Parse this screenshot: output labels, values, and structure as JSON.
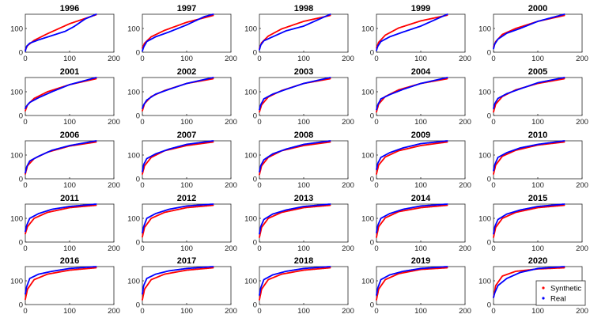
{
  "chart_data": {
    "type": "line",
    "layout": "5x5 small multiples",
    "x_ticks": [
      0,
      100,
      200
    ],
    "y_ticks": [
      0,
      100
    ],
    "xlim": [
      0,
      200
    ],
    "ylim": [
      0,
      160
    ],
    "colors": {
      "synthetic": "#ff0000",
      "real": "#0000ff"
    },
    "legend": {
      "placement": "bottom-right of last panel",
      "entries": [
        {
          "label": "Synthetic",
          "color": "#ff0000",
          "marker": "dot"
        },
        {
          "label": "Real",
          "color": "#0000ff",
          "marker": "dot"
        }
      ]
    },
    "panels": [
      {
        "title": "1996",
        "synthetic": {
          "x": [
            0,
            5,
            20,
            50,
            100,
            160
          ],
          "y": [
            10,
            28,
            50,
            78,
            120,
            158
          ]
        },
        "real": {
          "x": [
            0,
            3,
            10,
            30,
            60,
            90,
            110,
            135,
            160
          ],
          "y": [
            5,
            25,
            38,
            52,
            70,
            88,
            108,
            140,
            160
          ]
        }
      },
      {
        "title": "1997",
        "synthetic": {
          "x": [
            0,
            5,
            20,
            50,
            100,
            160
          ],
          "y": [
            18,
            38,
            65,
            92,
            126,
            155
          ]
        },
        "real": {
          "x": [
            0,
            3,
            10,
            30,
            60,
            100,
            140,
            160
          ],
          "y": [
            5,
            22,
            45,
            65,
            85,
            115,
            150,
            160
          ]
        }
      },
      {
        "title": "1998",
        "synthetic": {
          "x": [
            0,
            5,
            20,
            50,
            100,
            160
          ],
          "y": [
            16,
            40,
            68,
            98,
            130,
            155
          ]
        },
        "real": {
          "x": [
            0,
            3,
            10,
            30,
            60,
            100,
            130,
            160
          ],
          "y": [
            10,
            30,
            48,
            65,
            90,
            110,
            135,
            160
          ]
        }
      },
      {
        "title": "1999",
        "synthetic": {
          "x": [
            0,
            5,
            20,
            50,
            100,
            160
          ],
          "y": [
            18,
            42,
            72,
            102,
            132,
            156
          ]
        },
        "real": {
          "x": [
            0,
            3,
            10,
            30,
            60,
            100,
            130,
            160
          ],
          "y": [
            8,
            25,
            45,
            65,
            85,
            110,
            135,
            160
          ]
        }
      },
      {
        "title": "2000",
        "synthetic": {
          "x": [
            0,
            5,
            20,
            50,
            100,
            160
          ],
          "y": [
            22,
            45,
            75,
            100,
            130,
            155
          ]
        },
        "real": {
          "x": [
            0,
            3,
            10,
            30,
            60,
            100,
            160
          ],
          "y": [
            15,
            35,
            55,
            80,
            100,
            130,
            160
          ]
        }
      },
      {
        "title": "2001",
        "synthetic": {
          "x": [
            0,
            5,
            20,
            50,
            100,
            160
          ],
          "y": [
            20,
            45,
            72,
            100,
            130,
            155
          ]
        },
        "real": {
          "x": [
            0,
            3,
            10,
            30,
            60,
            100,
            160
          ],
          "y": [
            30,
            40,
            55,
            75,
            100,
            130,
            160
          ]
        }
      },
      {
        "title": "2002",
        "synthetic": {
          "x": [
            0,
            5,
            20,
            50,
            100,
            160
          ],
          "y": [
            20,
            50,
            80,
            105,
            135,
            155
          ]
        },
        "real": {
          "x": [
            0,
            3,
            10,
            30,
            60,
            100,
            160
          ],
          "y": [
            30,
            45,
            65,
            90,
            110,
            135,
            160
          ]
        }
      },
      {
        "title": "2003",
        "synthetic": {
          "x": [
            0,
            5,
            20,
            50,
            100,
            160
          ],
          "y": [
            15,
            45,
            78,
            105,
            135,
            155
          ]
        },
        "real": {
          "x": [
            0,
            3,
            10,
            30,
            60,
            100,
            160
          ],
          "y": [
            25,
            45,
            70,
            90,
            110,
            135,
            160
          ]
        }
      },
      {
        "title": "2004",
        "synthetic": {
          "x": [
            0,
            5,
            20,
            50,
            100,
            160
          ],
          "y": [
            15,
            48,
            80,
            108,
            135,
            155
          ]
        },
        "real": {
          "x": [
            0,
            3,
            10,
            30,
            60,
            100,
            160
          ],
          "y": [
            25,
            45,
            70,
            88,
            110,
            135,
            160
          ]
        }
      },
      {
        "title": "2005",
        "synthetic": {
          "x": [
            0,
            5,
            20,
            50,
            100,
            160
          ],
          "y": [
            15,
            48,
            80,
            108,
            135,
            155
          ]
        },
        "real": {
          "x": [
            0,
            3,
            10,
            30,
            60,
            100,
            160
          ],
          "y": [
            30,
            50,
            72,
            92,
            112,
            138,
            160
          ]
        }
      },
      {
        "title": "2006",
        "synthetic": {
          "x": [
            0,
            5,
            20,
            50,
            100,
            160
          ],
          "y": [
            20,
            55,
            85,
            112,
            138,
            155
          ]
        },
        "real": {
          "x": [
            0,
            3,
            10,
            30,
            60,
            100,
            160
          ],
          "y": [
            25,
            50,
            75,
            95,
            120,
            140,
            160
          ]
        }
      },
      {
        "title": "2007",
        "synthetic": {
          "x": [
            0,
            5,
            20,
            50,
            100,
            160
          ],
          "y": [
            20,
            55,
            90,
            118,
            140,
            155
          ]
        },
        "real": {
          "x": [
            0,
            3,
            10,
            30,
            60,
            100,
            160
          ],
          "y": [
            30,
            60,
            85,
            105,
            125,
            145,
            160
          ]
        }
      },
      {
        "title": "2008",
        "synthetic": {
          "x": [
            0,
            5,
            20,
            50,
            100,
            160
          ],
          "y": [
            18,
            55,
            90,
            118,
            140,
            155
          ]
        },
        "real": {
          "x": [
            0,
            3,
            10,
            30,
            60,
            100,
            160
          ],
          "y": [
            30,
            55,
            80,
            105,
            125,
            145,
            160
          ]
        }
      },
      {
        "title": "2009",
        "synthetic": {
          "x": [
            0,
            5,
            20,
            50,
            100,
            160
          ],
          "y": [
            20,
            58,
            92,
            118,
            140,
            155
          ]
        },
        "real": {
          "x": [
            0,
            3,
            10,
            30,
            60,
            100,
            160
          ],
          "y": [
            40,
            65,
            90,
            110,
            130,
            148,
            160
          ]
        }
      },
      {
        "title": "2010",
        "synthetic": {
          "x": [
            0,
            5,
            20,
            50,
            100,
            160
          ],
          "y": [
            20,
            58,
            95,
            120,
            142,
            155
          ]
        },
        "real": {
          "x": [
            0,
            3,
            10,
            30,
            60,
            100,
            160
          ],
          "y": [
            35,
            60,
            90,
            110,
            130,
            145,
            160
          ]
        }
      },
      {
        "title": "2011",
        "synthetic": {
          "x": [
            0,
            5,
            20,
            50,
            100,
            160
          ],
          "y": [
            35,
            65,
            100,
            125,
            145,
            155
          ]
        },
        "real": {
          "x": [
            0,
            3,
            10,
            30,
            60,
            100,
            160
          ],
          "y": [
            45,
            70,
            100,
            120,
            138,
            150,
            160
          ]
        }
      },
      {
        "title": "2012",
        "synthetic": {
          "x": [
            0,
            5,
            20,
            50,
            100,
            160
          ],
          "y": [
            22,
            62,
            100,
            125,
            145,
            155
          ]
        },
        "real": {
          "x": [
            0,
            3,
            10,
            30,
            60,
            100,
            160
          ],
          "y": [
            40,
            65,
            100,
            120,
            138,
            152,
            160
          ]
        }
      },
      {
        "title": "2013",
        "synthetic": {
          "x": [
            0,
            5,
            20,
            50,
            100,
            160
          ],
          "y": [
            20,
            62,
            100,
            125,
            145,
            155
          ]
        },
        "real": {
          "x": [
            0,
            3,
            10,
            30,
            60,
            100,
            160
          ],
          "y": [
            35,
            65,
            95,
            118,
            135,
            150,
            160
          ]
        }
      },
      {
        "title": "2014",
        "synthetic": {
          "x": [
            0,
            5,
            20,
            50,
            100,
            160
          ],
          "y": [
            20,
            65,
            102,
            128,
            145,
            155
          ]
        },
        "real": {
          "x": [
            0,
            3,
            10,
            30,
            60,
            100,
            160
          ],
          "y": [
            40,
            70,
            100,
            120,
            138,
            152,
            160
          ]
        }
      },
      {
        "title": "2015",
        "synthetic": {
          "x": [
            0,
            5,
            20,
            50,
            100,
            160
          ],
          "y": [
            20,
            62,
            100,
            125,
            145,
            155
          ]
        },
        "real": {
          "x": [
            0,
            3,
            10,
            30,
            60,
            100,
            160
          ],
          "y": [
            35,
            65,
            95,
            118,
            135,
            150,
            160
          ]
        }
      },
      {
        "title": "2016",
        "synthetic": {
          "x": [
            0,
            5,
            20,
            50,
            100,
            160
          ],
          "y": [
            22,
            65,
            105,
            128,
            145,
            155
          ]
        },
        "real": {
          "x": [
            0,
            3,
            10,
            30,
            60,
            100,
            160
          ],
          "y": [
            45,
            75,
            110,
            128,
            140,
            152,
            160
          ]
        }
      },
      {
        "title": "2017",
        "synthetic": {
          "x": [
            0,
            5,
            20,
            50,
            100,
            160
          ],
          "y": [
            20,
            65,
            105,
            128,
            145,
            155
          ]
        },
        "real": {
          "x": [
            0,
            3,
            10,
            30,
            60,
            100,
            160
          ],
          "y": [
            45,
            80,
            110,
            128,
            142,
            152,
            160
          ]
        }
      },
      {
        "title": "2018",
        "synthetic": {
          "x": [
            0,
            5,
            20,
            50,
            100,
            160
          ],
          "y": [
            20,
            65,
            105,
            128,
            145,
            155
          ]
        },
        "real": {
          "x": [
            0,
            3,
            10,
            30,
            60,
            100,
            160
          ],
          "y": [
            40,
            70,
            105,
            125,
            140,
            152,
            160
          ]
        }
      },
      {
        "title": "2019",
        "synthetic": {
          "x": [
            0,
            5,
            20,
            50,
            100,
            160
          ],
          "y": [
            20,
            65,
            105,
            130,
            148,
            155
          ]
        },
        "real": {
          "x": [
            0,
            3,
            10,
            30,
            60,
            100,
            160
          ],
          "y": [
            40,
            70,
            105,
            125,
            140,
            152,
            160
          ]
        }
      },
      {
        "title": "2020",
        "synthetic": {
          "x": [
            0,
            5,
            20,
            50,
            100,
            160
          ],
          "y": [
            30,
            80,
            120,
            140,
            150,
            155
          ]
        },
        "real": {
          "x": [
            0,
            3,
            10,
            30,
            60,
            100,
            160
          ],
          "y": [
            30,
            50,
            80,
            110,
            135,
            152,
            160
          ]
        }
      }
    ]
  }
}
